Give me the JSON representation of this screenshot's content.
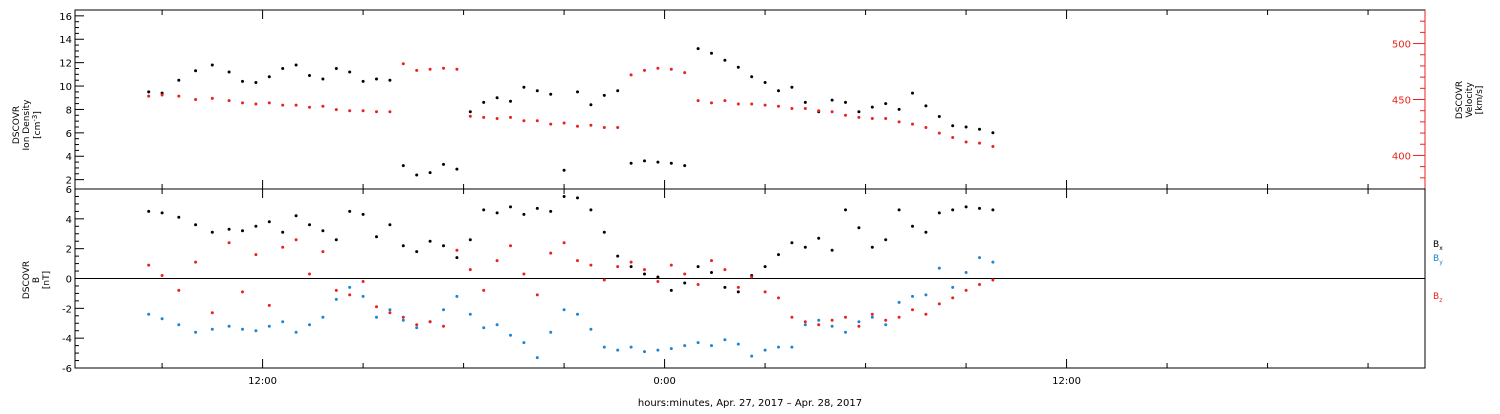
{
  "chart_data": [
    {
      "type": "scatter",
      "panel": "plasma",
      "ylabel_left": [
        "DSCOVR",
        "Ion Density",
        "[cm",
        "-3",
        "]"
      ],
      "ylabel_right": [
        "DSCOVR",
        "Velocity",
        "[km/s]"
      ],
      "ylim_left": [
        1.2,
        16.5
      ],
      "ylim_right": [
        370,
        530
      ],
      "yticks_left": [
        "2",
        "4",
        "6",
        "8",
        "10",
        "12",
        "14",
        "16"
      ],
      "yticks_right": [
        "400",
        "450",
        "500"
      ],
      "colors": {
        "density": "#000000",
        "velocity": "#e8221f"
      },
      "series": [
        {
          "axis": "left",
          "x": [
            -15.4,
            -15,
            -14.5,
            -14,
            -13.5,
            -13,
            -12.6,
            -12.2,
            -11.8,
            -11.4,
            -11,
            -10.6,
            -10.2,
            -9.8,
            -9.4,
            -9,
            -8.6,
            -8.2,
            -7.8,
            -7.4,
            -7,
            -6.6,
            -6.2,
            -5.8,
            -5.4,
            -5,
            -4.6,
            -4.2,
            -3.8,
            -3.4,
            -3,
            -2.6,
            -2.2,
            -1.8,
            -1.4,
            -1,
            -0.6,
            -0.2,
            0.2,
            0.6,
            1,
            1.4,
            1.8,
            2.2,
            2.6,
            3,
            3.4,
            3.8,
            4.2,
            4.6,
            5,
            5.4,
            5.8,
            6.2,
            6.6,
            7,
            7.4,
            7.8,
            8.2,
            8.6,
            9,
            9.4,
            9.8
          ],
          "values": [
            9.5,
            9.4,
            10.5,
            11.3,
            11.8,
            11.2,
            10.4,
            10.3,
            10.8,
            11.5,
            11.8,
            10.9,
            10.6,
            11.5,
            11.2,
            10.4,
            10.6,
            10.5,
            3.2,
            2.4,
            2.6,
            3.3,
            2.9,
            7.8,
            8.6,
            9,
            8.7,
            9.9,
            9.6,
            9.3,
            2.8,
            9.5,
            8.4,
            9.2,
            9.6,
            3.4,
            3.6,
            3.5,
            3.4,
            3.2,
            13.2,
            12.8,
            12.2,
            11.6,
            10.8,
            10.3,
            9.6,
            9.9,
            8.6,
            7.8,
            8.8,
            8.6,
            7.8,
            8.2,
            8.5,
            8,
            9.4,
            8.3,
            7.4,
            6.6,
            6.5,
            6.3,
            6
          ]
        },
        {
          "axis": "right",
          "x": [
            -15.4,
            -15,
            -14.5,
            -14,
            -13.5,
            -13,
            -12.6,
            -12.2,
            -11.8,
            -11.4,
            -11,
            -10.6,
            -10.2,
            -9.8,
            -9.4,
            -9,
            -8.6,
            -8.2,
            -7.8,
            -7.4,
            -7,
            -6.6,
            -6.2,
            -5.8,
            -5.4,
            -5,
            -4.6,
            -4.2,
            -3.8,
            -3.4,
            -3,
            -2.6,
            -2.2,
            -1.8,
            -1.4,
            -1,
            -0.6,
            -0.2,
            0.2,
            0.6,
            1,
            1.4,
            1.8,
            2.2,
            2.6,
            3,
            3.4,
            3.8,
            4.2,
            4.6,
            5,
            5.4,
            5.8,
            6.2,
            6.6,
            7,
            7.4,
            7.8,
            8.2,
            8.6,
            9,
            9.4,
            9.8
          ],
          "values": [
            453,
            454,
            453,
            450,
            451,
            449,
            447,
            446,
            447,
            445,
            445,
            443,
            444,
            441,
            440,
            440,
            439,
            439,
            482,
            476,
            477,
            478,
            477,
            435,
            434,
            433,
            434,
            431,
            431,
            428,
            429,
            426,
            427,
            425,
            425,
            472,
            476,
            478,
            477,
            474,
            449,
            447,
            449,
            446,
            446,
            445,
            444,
            442,
            442,
            440,
            439,
            436,
            434,
            433,
            433,
            430,
            428,
            425,
            420,
            416,
            412,
            411,
            408
          ]
        }
      ]
    },
    {
      "type": "scatter",
      "panel": "magnetic-field",
      "xlabel": "hours:minutes, Apr. 27, 2017 – Apr. 28, 2017",
      "ylabel_left": [
        "DSCOVR",
        "B",
        "[nT]"
      ],
      "ylim": [
        -6,
        6
      ],
      "xlim": [
        -17.6,
        22.7
      ],
      "yticks": [
        "-6",
        "-4",
        "-2",
        "0",
        "2",
        "4",
        "6"
      ],
      "xticks": [
        {
          "value": -12,
          "label": "12:00"
        },
        {
          "value": 0,
          "label": "0:00"
        },
        {
          "value": 12,
          "label": "12:00"
        }
      ],
      "legend": [
        "B",
        "B",
        "B"
      ],
      "legend_subscripts": [
        "x",
        "y",
        "z"
      ],
      "legend_placement": "right",
      "colors": {
        "bx": "#000000",
        "by": "#1f84d2",
        "bz": "#e8221f"
      },
      "series": [
        {
          "x": [
            -15.4,
            -15,
            -14.5,
            -14,
            -13.5,
            -13,
            -12.6,
            -12.2,
            -11.8,
            -11.4,
            -11,
            -10.6,
            -10.2,
            -9.8,
            -9.4,
            -9,
            -8.6,
            -8.2,
            -7.8,
            -7.4,
            -7,
            -6.6,
            -6.2,
            -5.8,
            -5.4,
            -5,
            -4.6,
            -4.2,
            -3.8,
            -3.4,
            -3,
            -2.6,
            -2.2,
            -1.8,
            -1.4,
            -1,
            -0.6,
            -0.2,
            0.2,
            0.6,
            1,
            1.4,
            1.8,
            2.2,
            2.6,
            3,
            3.4,
            3.8,
            4.2,
            4.6,
            5,
            5.4,
            5.8,
            6.2,
            6.6,
            7,
            7.4,
            7.8,
            8.2,
            8.6,
            9,
            9.4,
            9.8
          ],
          "values": [
            4.5,
            4.4,
            4.1,
            3.6,
            3.1,
            3.3,
            3.2,
            3.5,
            3.8,
            3.1,
            4.2,
            3.6,
            3.2,
            2.6,
            4.5,
            4.3,
            2.8,
            3.6,
            2.2,
            1.8,
            2.5,
            2.2,
            1.4,
            2.6,
            4.6,
            4.4,
            4.8,
            4.3,
            4.7,
            4.5,
            5.5,
            5.4,
            4.6,
            3.1,
            1.5,
            0.8,
            0.3,
            0.1,
            -0.8,
            -0.3,
            0.8,
            0.4,
            -0.6,
            -0.9,
            0.2,
            0.8,
            1.6,
            2.4,
            2.1,
            2.7,
            1.9,
            4.6,
            3.4,
            2.1,
            2.6,
            4.6,
            3.5,
            3.1,
            4.4,
            4.6,
            4.8,
            4.7,
            4.6
          ]
        },
        {
          "x": [
            -15.4,
            -15,
            -14.5,
            -14,
            -13.5,
            -13,
            -12.6,
            -12.2,
            -11.8,
            -11.4,
            -11,
            -10.6,
            -10.2,
            -9.8,
            -9.4,
            -9,
            -8.6,
            -8.2,
            -7.8,
            -7.4,
            -7,
            -6.6,
            -6.2,
            -5.8,
            -5.4,
            -5,
            -4.6,
            -4.2,
            -3.8,
            -3.4,
            -3,
            -2.6,
            -2.2,
            -1.8,
            -1.4,
            -1,
            -0.6,
            -0.2,
            0.2,
            0.6,
            1,
            1.4,
            1.8,
            2.2,
            2.6,
            3,
            3.4,
            3.8,
            4.2,
            4.6,
            5,
            5.4,
            5.8,
            6.2,
            6.6,
            7,
            7.4,
            7.8,
            8.2,
            8.6,
            9,
            9.4,
            9.8
          ],
          "values": [
            -2.4,
            -2.7,
            -3.1,
            -3.6,
            -3.4,
            -3.2,
            -3.4,
            -3.5,
            -3.2,
            -2.9,
            -3.6,
            -3.1,
            -2.6,
            -1.4,
            -0.6,
            -1.2,
            -2.6,
            -2.1,
            -2.8,
            -3.3,
            -2.9,
            -2.1,
            -1.2,
            -2.4,
            -3.3,
            -3.1,
            -3.8,
            -4.3,
            -5.3,
            -3.6,
            -2.1,
            -2.4,
            -3.4,
            -4.6,
            -4.8,
            -4.6,
            -4.9,
            -4.8,
            -4.7,
            -4.5,
            -4.3,
            -4.5,
            -4.1,
            -4.4,
            -5.2,
            -4.8,
            -4.6,
            -4.6,
            -3.1,
            -2.8,
            -3.2,
            -3.6,
            -2.9,
            -2.6,
            -3.1,
            -1.6,
            -1.2,
            -1.1,
            0.7,
            -0.6,
            0.4,
            1.4,
            1.1
          ]
        },
        {
          "x": [
            -15.4,
            -15,
            -14.5,
            -14,
            -13.5,
            -13,
            -12.6,
            -12.2,
            -11.8,
            -11.4,
            -11,
            -10.6,
            -10.2,
            -9.8,
            -9.4,
            -9,
            -8.6,
            -8.2,
            -7.8,
            -7.4,
            -7,
            -6.6,
            -6.2,
            -5.8,
            -5.4,
            -5,
            -4.6,
            -4.2,
            -3.8,
            -3.4,
            -3,
            -2.6,
            -2.2,
            -1.8,
            -1.4,
            -1,
            -0.6,
            -0.2,
            0.2,
            0.6,
            1,
            1.4,
            1.8,
            2.2,
            2.6,
            3,
            3.4,
            3.8,
            4.2,
            4.6,
            5,
            5.4,
            5.8,
            6.2,
            6.6,
            7,
            7.4,
            7.8,
            8.2,
            8.6,
            9,
            9.4,
            9.8
          ],
          "values": [
            0.9,
            0.2,
            -0.8,
            1.1,
            -2.3,
            2.4,
            -0.9,
            1.6,
            -1.8,
            2.1,
            2.6,
            0.3,
            1.8,
            -0.8,
            -1.1,
            -0.2,
            -1.9,
            -2.3,
            -2.6,
            -3.1,
            -2.9,
            -3.2,
            1.9,
            0.6,
            -0.8,
            1.2,
            2.2,
            0.3,
            -1.1,
            1.7,
            2.4,
            1.2,
            0.9,
            -0.1,
            0.8,
            1.1,
            0.6,
            -0.2,
            0.9,
            0.3,
            -0.4,
            1.2,
            0.6,
            -0.6,
            0.1,
            -0.9,
            -1.3,
            -2.6,
            -2.9,
            -3.1,
            -2.8,
            -2.6,
            -3.2,
            -2.4,
            -2.8,
            -2.6,
            -2.1,
            -2.4,
            -1.7,
            -1.3,
            -0.8,
            -0.4,
            -0.1
          ]
        }
      ]
    }
  ]
}
